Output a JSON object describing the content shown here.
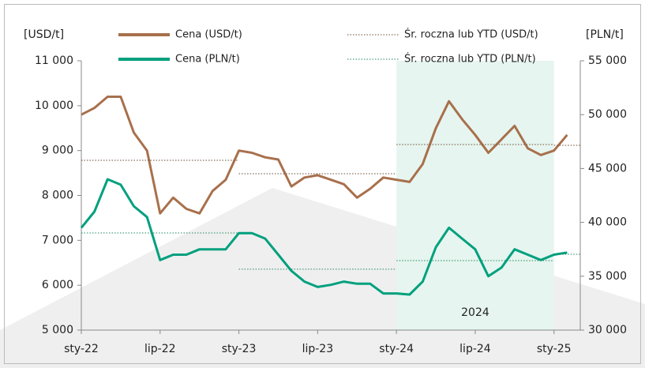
{
  "chart_data": {
    "type": "line",
    "y_label": "[USD/t]",
    "y2_label": "[PLN/t]",
    "x": [
      "2022-01",
      "2022-02",
      "2022-03",
      "2022-04",
      "2022-05",
      "2022-06",
      "2022-07",
      "2022-08",
      "2022-09",
      "2022-10",
      "2022-11",
      "2022-12",
      "2023-01",
      "2023-02",
      "2023-03",
      "2023-04",
      "2023-05",
      "2023-06",
      "2023-07",
      "2023-08",
      "2023-09",
      "2023-10",
      "2023-11",
      "2023-12",
      "2024-01",
      "2024-02",
      "2024-03",
      "2024-04",
      "2024-05",
      "2024-06",
      "2024-07",
      "2024-08",
      "2024-09",
      "2024-10",
      "2024-11",
      "2024-12",
      "2025-01",
      "2025-02"
    ],
    "xlim": [
      "2022-01",
      "2025-03"
    ],
    "xticks": [
      {
        "value": "2022-01",
        "label": "sty-22"
      },
      {
        "value": "2022-07",
        "label": "lip-22"
      },
      {
        "value": "2023-01",
        "label": "sty-23"
      },
      {
        "value": "2023-07",
        "label": "lip-23"
      },
      {
        "value": "2024-01",
        "label": "sty-24"
      },
      {
        "value": "2024-07",
        "label": "lip-24"
      },
      {
        "value": "2025-01",
        "label": "sty-25"
      }
    ],
    "ylim": [
      5000,
      11000
    ],
    "yticks": [
      {
        "value": 5000,
        "label": "5 000"
      },
      {
        "value": 6000,
        "label": "6 000"
      },
      {
        "value": 7000,
        "label": "7 000"
      },
      {
        "value": 8000,
        "label": "8 000"
      },
      {
        "value": 9000,
        "label": "9 000"
      },
      {
        "value": 10000,
        "label": "10 000"
      },
      {
        "value": 11000,
        "label": "11 000"
      }
    ],
    "y2lim": [
      30000,
      55000
    ],
    "y2ticks": [
      {
        "value": 30000,
        "label": "30 000"
      },
      {
        "value": 35000,
        "label": "35 000"
      },
      {
        "value": 40000,
        "label": "40 000"
      },
      {
        "value": 45000,
        "label": "45 000"
      },
      {
        "value": 50000,
        "label": "50 000"
      },
      {
        "value": 55000,
        "label": "55 000"
      }
    ],
    "highlight": {
      "start": "2024-01",
      "end": "2025-01",
      "label": "2024",
      "color": "#e6f5ef"
    },
    "series": [
      {
        "name": "Cena (USD/t)",
        "color": "#a8704c",
        "values": [
          9800,
          9950,
          10200,
          10200,
          9400,
          9000,
          7600,
          7950,
          7700,
          7600,
          8100,
          8350,
          9000,
          8950,
          8850,
          8800,
          8200,
          8400,
          8450,
          8350,
          8250,
          7950,
          8150,
          8400,
          8350,
          8300,
          8700,
          9500,
          10100,
          9700,
          9350,
          8950,
          9250,
          9550,
          9050,
          8900,
          9000,
          9350
        ]
      },
      {
        "name": "Cena (PLN/t)",
        "color": "#00a07e",
        "axis": "y2",
        "values": [
          39500,
          41000,
          44000,
          43500,
          41500,
          40500,
          36500,
          37000,
          37000,
          37500,
          37500,
          37500,
          39000,
          39000,
          38500,
          37000,
          35500,
          34500,
          34000,
          34200,
          34500,
          34300,
          34300,
          33400,
          33400,
          33300,
          34500,
          37700,
          39500,
          38500,
          37500,
          35000,
          35800,
          37500,
          37000,
          36500,
          37000,
          37200
        ]
      },
      {
        "name": "Śr. roczna lub YTD (USD/t)",
        "color": "#6b4a30",
        "style": "dotted",
        "segments": [
          {
            "start": "2022-01",
            "end": "2023-01",
            "value": 8782
          },
          {
            "start": "2023-01",
            "end": "2024-01",
            "value": 8483
          },
          {
            "start": "2024-01",
            "end": "2025-01",
            "value": 9135
          },
          {
            "start": "2025-01",
            "end": "2025-03",
            "value": 9118
          }
        ]
      },
      {
        "name": "Śr. roczna lub YTD (PLN/t)",
        "color": "#1f8a5c",
        "style": "dotted",
        "axis": "y2",
        "segments": [
          {
            "start": "2022-01",
            "end": "2023-01",
            "value": 39020
          },
          {
            "start": "2023-01",
            "end": "2024-01",
            "value": 35650
          },
          {
            "start": "2024-01",
            "end": "2025-01",
            "value": 36450
          },
          {
            "start": "2025-01",
            "end": "2025-03",
            "value": 37040
          }
        ]
      }
    ]
  }
}
